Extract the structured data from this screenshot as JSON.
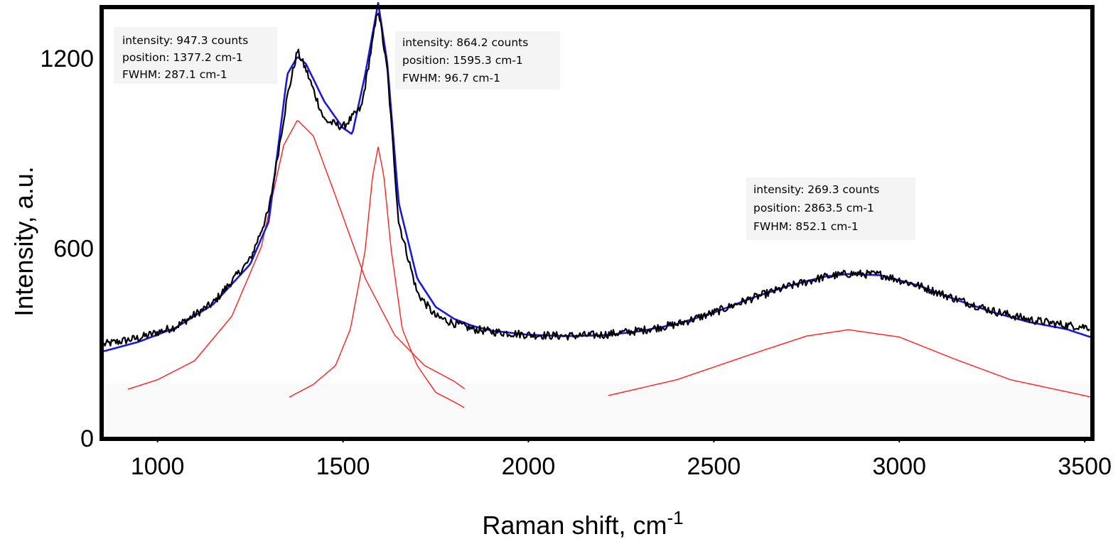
{
  "chart_data": {
    "type": "line",
    "title": "",
    "xlabel": "Raman shift, cm",
    "xlabel_superscript": "-1",
    "ylabel": "Intensity, a.u.",
    "xlim": [
      855,
      3515
    ],
    "ylim": [
      0,
      1350
    ],
    "x_ticks": [
      1000,
      1500,
      2000,
      2500,
      3000,
      3500
    ],
    "y_ticks": [
      0,
      600,
      1200
    ],
    "grid": false,
    "legend": "none",
    "colors": {
      "measured": "#000000",
      "fit": "#1a1adc",
      "components": "#ff2020",
      "annotation_bg": "#f4f4f4"
    },
    "series": [
      {
        "role": "measured spectrum (black, noisy)",
        "x": [
          855,
          950,
          1050,
          1150,
          1250,
          1300,
          1350,
          1377,
          1400,
          1450,
          1500,
          1550,
          1595,
          1620,
          1650,
          1700,
          1750,
          1800,
          1850,
          1900,
          2000,
          2100,
          2200,
          2300,
          2400,
          2500,
          2600,
          2700,
          2800,
          2863,
          2950,
          3050,
          3150,
          3250,
          3350,
          3450,
          3515
        ],
        "y": [
          292,
          312,
          348,
          422,
          560,
          715,
          1075,
          1218,
          1160,
          1000,
          978,
          1040,
          1355,
          1150,
          680,
          455,
          380,
          358,
          340,
          332,
          322,
          318,
          322,
          335,
          355,
          392,
          436,
          474,
          505,
          515,
          512,
          478,
          436,
          398,
          370,
          352,
          346
        ]
      },
      {
        "role": "fitted envelope (blue)",
        "x": [
          855,
          950,
          1050,
          1150,
          1250,
          1300,
          1350,
          1377,
          1400,
          1450,
          1500,
          1525,
          1560,
          1595,
          1620,
          1650,
          1700,
          1750,
          1800,
          1850,
          1900,
          2000,
          2100,
          2200,
          2300,
          2400,
          2500,
          2600,
          2700,
          2800,
          2863,
          2950,
          3050,
          3150,
          3250,
          3350,
          3450,
          3515
        ],
        "y": [
          270,
          300,
          345,
          418,
          545,
          680,
          1145,
          1200,
          1178,
          1058,
          975,
          955,
          1145,
          1370,
          1175,
          740,
          500,
          410,
          372,
          350,
          335,
          322,
          318,
          320,
          333,
          356,
          392,
          437,
          476,
          506,
          514,
          510,
          478,
          434,
          394,
          362,
          340,
          315
        ]
      },
      {
        "role": "fitted component peak 1 (red)",
        "x": [
          920,
          1000,
          1100,
          1200,
          1280,
          1340,
          1377,
          1420,
          1480,
          1560,
          1640,
          1720,
          1800,
          1830
        ],
        "y": [
          150,
          180,
          240,
          380,
          600,
          920,
          1000,
          950,
          760,
          500,
          320,
          225,
          175,
          150
        ]
      },
      {
        "role": "fitted component peak 2 (red)",
        "x": [
          1355,
          1420,
          1480,
          1520,
          1560,
          1580,
          1595,
          1610,
          1630,
          1660,
          1700,
          1750,
          1800,
          1830
        ],
        "y": [
          125,
          165,
          225,
          340,
          590,
          825,
          915,
          825,
          590,
          340,
          225,
          140,
          110,
          90
        ]
      },
      {
        "role": "fitted component peak 3 (red)",
        "x": [
          2215,
          2400,
          2600,
          2750,
          2863,
          3000,
          3150,
          3300,
          3515
        ],
        "y": [
          130,
          180,
          260,
          318,
          338,
          315,
          245,
          180,
          126
        ]
      }
    ],
    "annotations": [
      {
        "lines": [
          "intensity: 947.3 counts",
          "position: 1377.2 cm-1",
          "FWHM: 287.1 cm-1"
        ]
      },
      {
        "lines": [
          "intensity: 864.2 counts",
          "position: 1595.3 cm-1",
          "FWHM: 96.7 cm-1"
        ]
      },
      {
        "lines": [
          "intensity: 269.3  counts",
          "position: 2863.5  cm-1",
          "FWHM: 852.1 cm-1"
        ]
      }
    ]
  }
}
